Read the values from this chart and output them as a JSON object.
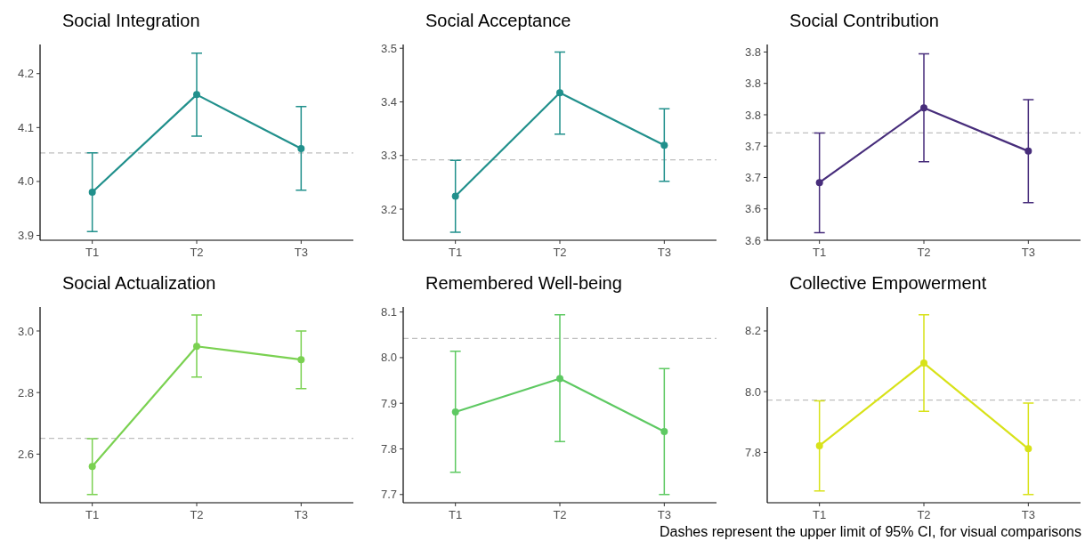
{
  "chart_data": [
    {
      "type": "line",
      "title": "Social Integration",
      "categories": [
        "T1",
        "T2",
        "T3"
      ],
      "marker": "circle",
      "grid": false,
      "series": [
        {
          "color": "#21908c",
          "values": [
            3.98,
            4.161,
            4.061
          ],
          "errors": [
            [
              3.907,
              4.053
            ],
            [
              4.084,
              4.238
            ],
            [
              3.984,
              4.139
            ]
          ]
        }
      ],
      "ylim": [
        3.891,
        4.254
      ],
      "yticks": [
        3.9,
        {
          "value": 4,
          "label": "4.0"
        },
        4.1,
        4.2
      ],
      "ref_lines": [
        {
          "axis": "y",
          "value": 4.053,
          "color": "#bebebe",
          "line_style": "dashed"
        }
      ]
    },
    {
      "type": "line",
      "title": "Social Acceptance",
      "categories": [
        "T1",
        "T2",
        "T3"
      ],
      "marker": "circle",
      "grid": false,
      "series": [
        {
          "color": "#21908c",
          "values": [
            3.224,
            3.417,
            3.319
          ],
          "errors": [
            [
              3.157,
              3.291
            ],
            [
              3.34,
              3.493
            ],
            [
              3.252,
              3.387
            ]
          ]
        }
      ],
      "ylim": [
        3.142,
        3.507
      ],
      "yticks": [
        3.2,
        3.3,
        3.4,
        3.5
      ],
      "ref_lines": [
        {
          "axis": "y",
          "value": 3.292,
          "color": "#bebebe",
          "line_style": "dashed"
        }
      ]
    },
    {
      "type": "line",
      "title": "Social Contribution",
      "categories": [
        "T1",
        "T2",
        "T3"
      ],
      "marker": "circle",
      "grid": false,
      "series": [
        {
          "color": "#472d7b",
          "values": [
            3.642,
            3.761,
            3.692
          ],
          "errors": [
            [
              3.562,
              3.721
            ],
            [
              3.675,
              3.847
            ],
            [
              3.61,
              3.774
            ]
          ]
        }
      ],
      "ylim": [
        3.55,
        3.862
      ],
      "yticks": [
        {
          "value": 3.55,
          "label": "3.6"
        },
        {
          "value": 3.6,
          "label": "3.6"
        },
        {
          "value": 3.65,
          "label": "3.7"
        },
        {
          "value": 3.7,
          "label": "3.7"
        },
        {
          "value": 3.75,
          "label": "3.8"
        },
        {
          "value": 3.8,
          "label": "3.8"
        },
        {
          "value": 3.85,
          "label": "3.8"
        }
      ],
      "ref_lines": [
        {
          "axis": "y",
          "value": 3.721,
          "color": "#bebebe",
          "line_style": "dashed"
        }
      ]
    },
    {
      "type": "line",
      "title": "Social Actualization",
      "categories": [
        "T1",
        "T2",
        "T3"
      ],
      "marker": "circle",
      "grid": false,
      "series": [
        {
          "color": "#7ad151",
          "values": [
            2.56,
            2.95,
            2.907
          ],
          "errors": [
            [
              2.469,
              2.65
            ],
            [
              2.85,
              3.052
            ],
            [
              2.813,
              3.0
            ]
          ]
        }
      ],
      "ylim": [
        2.442,
        3.078
      ],
      "yticks": [
        2.6,
        2.8,
        {
          "value": 3,
          "label": "3.0"
        }
      ],
      "ref_lines": [
        {
          "axis": "y",
          "value": 2.651,
          "color": "#bebebe",
          "line_style": "dashed"
        }
      ]
    },
    {
      "type": "line",
      "title": "Remembered Well-being",
      "categories": [
        "T1",
        "T2",
        "T3"
      ],
      "marker": "circle",
      "grid": false,
      "series": [
        {
          "color": "#5ec962",
          "values": [
            7.881,
            7.954,
            7.838
          ],
          "errors": [
            [
              7.749,
              8.014
            ],
            [
              7.816,
              8.094
            ],
            [
              7.7,
              7.976
            ]
          ]
        }
      ],
      "ylim": [
        7.682,
        8.111
      ],
      "yticks": [
        7.7,
        7.8,
        7.9,
        {
          "value": 8,
          "label": "8.0"
        },
        8.1
      ],
      "ref_lines": [
        {
          "axis": "y",
          "value": 8.042,
          "color": "#bebebe",
          "line_style": "dashed"
        }
      ]
    },
    {
      "type": "line",
      "title": "Collective Empowerment",
      "categories": [
        "T1",
        "T2",
        "T3"
      ],
      "marker": "circle",
      "grid": false,
      "series": [
        {
          "color": "#d8e219",
          "values": [
            7.822,
            8.094,
            7.812
          ],
          "errors": [
            [
              7.673,
              7.97
            ],
            [
              7.935,
              8.253
            ],
            [
              7.661,
              7.962
            ]
          ]
        }
      ],
      "ylim": [
        7.634,
        8.279
      ],
      "yticks": [
        7.8,
        {
          "value": 8,
          "label": "8.0"
        },
        8.2
      ],
      "ref_lines": [
        {
          "axis": "y",
          "value": 7.972,
          "color": "#bebebe",
          "line_style": "dashed"
        }
      ],
      "annotations": [
        "Dashes represent the upper limit of 95% CI, for visual comparisons"
      ]
    }
  ]
}
